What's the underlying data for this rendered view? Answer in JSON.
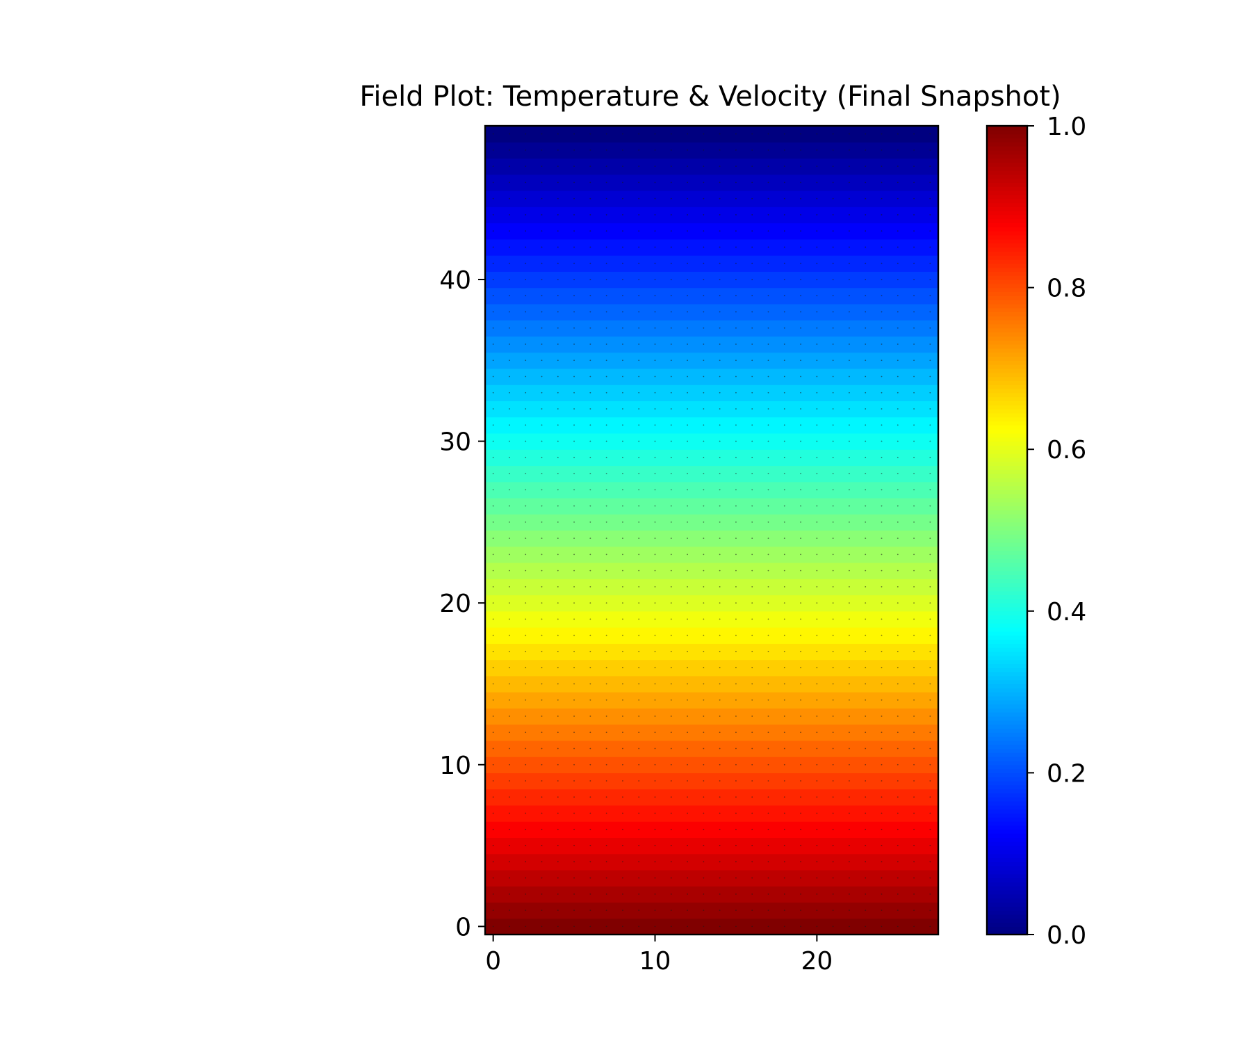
{
  "chart_data": {
    "type": "heatmap",
    "title": "Field Plot: Temperature & Velocity (Final Snapshot)",
    "xlabel": "",
    "ylabel": "",
    "xlim": [
      -0.5,
      27.5
    ],
    "ylim": [
      -0.5,
      49.5
    ],
    "grid_shape": {
      "rows": 50,
      "cols": 28
    },
    "x_ticks": [
      0,
      10,
      20
    ],
    "x_tick_labels": [
      "0",
      "10",
      "20"
    ],
    "y_ticks": [
      0,
      10,
      20,
      30,
      40
    ],
    "y_tick_labels": [
      "0",
      "10",
      "20",
      "30",
      "40"
    ],
    "field": "value = 1 - row/49 (linear vertical gradient, 1.0 at bottom row 0, 0.0 at top row 49)",
    "colormap": "jet",
    "colorbar": {
      "range": [
        0.0,
        1.0
      ],
      "ticks": [
        0.0,
        0.2,
        0.4,
        0.6,
        0.8,
        1.0
      ],
      "tick_labels": [
        "0.0",
        "0.2",
        "0.4",
        "0.6",
        "0.8",
        "1.0"
      ]
    },
    "overlay": "velocity quiver arrows (near-zero magnitude, rendered as tiny dots at each grid cell)",
    "grid": false,
    "legend": "none"
  }
}
